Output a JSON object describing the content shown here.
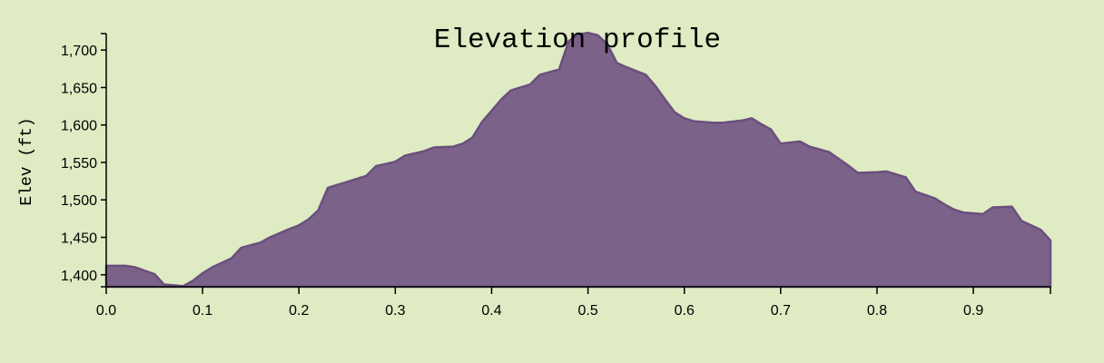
{
  "chart_data": {
    "type": "area",
    "title": "Elevation profile",
    "xlabel": "",
    "ylabel": "Elev (ft)",
    "xlim": [
      0,
      0.98
    ],
    "ylim": [
      1384,
      1722
    ],
    "x_ticks": [
      0.0,
      0.1,
      0.2,
      0.3,
      0.4,
      0.5,
      0.6,
      0.7,
      0.8,
      0.9
    ],
    "x_tick_labels": [
      "0.0",
      "0.1",
      "0.2",
      "0.3",
      "0.4",
      "0.5",
      "0.6",
      "0.7",
      "0.8",
      "0.9"
    ],
    "y_ticks": [
      1400,
      1450,
      1500,
      1550,
      1600,
      1650,
      1700
    ],
    "y_tick_labels": [
      "1,400",
      "1,450",
      "1,500",
      "1,550",
      "1,600",
      "1,650",
      "1,700"
    ],
    "grid": false,
    "colors": {
      "fill": "#7b6289",
      "stroke": "#6a4f7d",
      "background": "#dfebc3"
    },
    "series": [
      {
        "x": [
          0.0,
          0.02,
          0.03,
          0.05,
          0.06,
          0.08,
          0.09,
          0.1,
          0.11,
          0.12,
          0.13,
          0.14,
          0.16,
          0.17,
          0.19,
          0.2,
          0.21,
          0.22,
          0.23,
          0.25,
          0.27,
          0.28,
          0.3,
          0.31,
          0.33,
          0.34,
          0.36,
          0.37,
          0.38,
          0.39,
          0.4,
          0.41,
          0.42,
          0.44,
          0.45,
          0.47,
          0.48,
          0.49,
          0.5,
          0.51,
          0.52,
          0.53,
          0.54,
          0.56,
          0.57,
          0.58,
          0.59,
          0.6,
          0.61,
          0.63,
          0.64,
          0.66,
          0.67,
          0.68,
          0.69,
          0.7,
          0.72,
          0.73,
          0.75,
          0.76,
          0.77,
          0.78,
          0.8,
          0.81,
          0.83,
          0.84,
          0.86,
          0.87,
          0.88,
          0.89,
          0.91,
          0.92,
          0.94,
          0.95,
          0.97,
          0.98
        ],
        "y": [
          1412,
          1412,
          1410,
          1401,
          1387,
          1385,
          1392,
          1402,
          1410,
          1416,
          1422,
          1436,
          1443,
          1450,
          1461,
          1466,
          1474,
          1486,
          1516,
          1524,
          1532,
          1545,
          1551,
          1559,
          1565,
          1570,
          1571,
          1575,
          1583,
          1604,
          1619,
          1634,
          1646,
          1654,
          1667,
          1674,
          1712,
          1721,
          1723,
          1720,
          1708,
          1683,
          1677,
          1667,
          1652,
          1634,
          1617,
          1609,
          1605,
          1603,
          1603,
          1606,
          1609,
          1601,
          1594,
          1575,
          1578,
          1571,
          1564,
          1555,
          1546,
          1536,
          1537,
          1538,
          1530,
          1511,
          1502,
          1494,
          1487,
          1483,
          1481,
          1490,
          1491,
          1472,
          1460,
          1446
        ]
      }
    ]
  }
}
